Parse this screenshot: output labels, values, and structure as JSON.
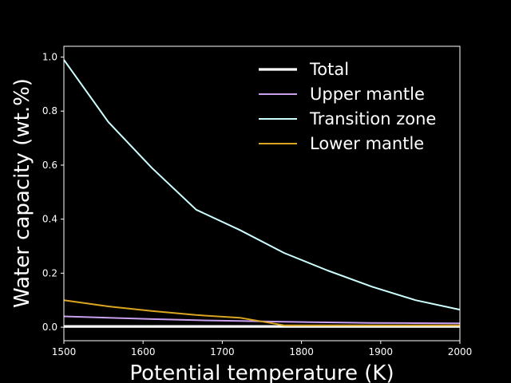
{
  "chart_data": {
    "type": "line",
    "xlabel": "Potential temperature (K)",
    "ylabel": "Water capacity (wt.%)",
    "xlim": [
      1500,
      2000
    ],
    "ylim": [
      -0.05,
      1.04
    ],
    "xticks": [
      1500,
      1600,
      1700,
      1800,
      1900,
      2000
    ],
    "yticks": [
      0.0,
      0.2,
      0.4,
      0.6,
      0.8,
      1.0
    ],
    "xtick_labels": [
      "1500",
      "1600",
      "1700",
      "1800",
      "1900",
      "2000"
    ],
    "ytick_labels": [
      "0.0",
      "0.2",
      "0.4",
      "0.6",
      "0.8",
      "1.0"
    ],
    "grid": false,
    "legend_position": "upper right",
    "background": "#000000",
    "series": [
      {
        "name": "Total",
        "color": "#ffffff",
        "x": [
          1500,
          1556,
          1611,
          1667,
          1722,
          1778,
          1833,
          1889,
          1944,
          2000
        ],
        "y": [
          0.003,
          0.003,
          0.003,
          0.003,
          0.003,
          0.003,
          0.003,
          0.003,
          0.003,
          0.003
        ]
      },
      {
        "name": "Upper mantle",
        "color": "#c9a0f0",
        "x": [
          1500,
          1556,
          1611,
          1667,
          1722,
          1778,
          1833,
          1889,
          1944,
          2000
        ],
        "y": [
          0.04,
          0.035,
          0.03,
          0.026,
          0.023,
          0.02,
          0.018,
          0.016,
          0.015,
          0.014
        ]
      },
      {
        "name": "Transition zone",
        "color": "#ccffff",
        "x": [
          1500,
          1556,
          1611,
          1667,
          1722,
          1778,
          1833,
          1889,
          1944,
          2000
        ],
        "y": [
          0.99,
          0.76,
          0.59,
          0.435,
          0.36,
          0.275,
          0.21,
          0.15,
          0.1,
          0.065
        ]
      },
      {
        "name": "Lower mantle",
        "color": "#daa520",
        "x": [
          1500,
          1556,
          1611,
          1667,
          1722,
          1778,
          1833,
          1889,
          1944,
          2000
        ],
        "y": [
          0.1,
          0.077,
          0.06,
          0.045,
          0.035,
          0.007,
          0.007,
          0.007,
          0.007,
          0.007
        ]
      }
    ]
  }
}
